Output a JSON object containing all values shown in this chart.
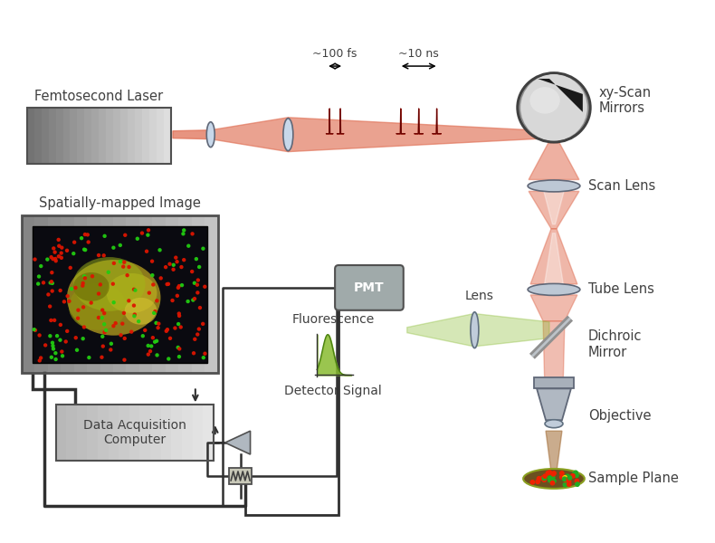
{
  "laser_color": "#E07055",
  "green_color": "#88BB30",
  "text_color": "#404040",
  "labels": {
    "femtosecond_laser": "Femtosecond Laser",
    "spatially_mapped": "Spatially-mapped Image",
    "xy_scan": "xy-Scan\nMirrors",
    "scan_lens": "Scan Lens",
    "tube_lens": "Tube Lens",
    "dichroic": "Dichroic\nMirror",
    "objective": "Objective",
    "sample_plane": "Sample Plane",
    "fluorescence": "Fluorescence",
    "detector_signal": "Detector Signal",
    "lens_label": "Lens",
    "pmt": "PMT",
    "data_acq": "Data Acquisition\nComputer",
    "pulse_100fs": "~100 fs",
    "pulse_10ns": "~10 ns"
  },
  "figsize": [
    7.9,
    6.0
  ],
  "dpi": 100
}
